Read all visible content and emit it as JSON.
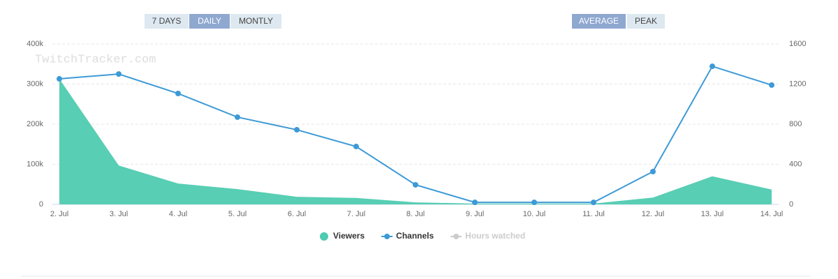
{
  "buttons": {
    "range": [
      {
        "label": "7 DAYS",
        "active": false
      },
      {
        "label": "DAILY",
        "active": true
      },
      {
        "label": "MONTLY",
        "active": false
      }
    ],
    "mode": [
      {
        "label": "AVERAGE",
        "active": true
      },
      {
        "label": "PEAK",
        "active": false
      }
    ]
  },
  "watermark": "TwitchTracker.com",
  "chart_data": {
    "type": "line",
    "categories": [
      "2. Jul",
      "3. Jul",
      "4. Jul",
      "5. Jul",
      "6. Jul",
      "7. Jul",
      "8. Jul",
      "9. Jul",
      "10. Jul",
      "11. Jul",
      "12. Jul",
      "13. Jul",
      "14. Jul"
    ],
    "series": [
      {
        "name": "Viewers",
        "type": "area",
        "color": "#4fcbb0",
        "visible": true,
        "values": [
          313000,
          97000,
          52000,
          38000,
          19000,
          16000,
          5000,
          2000,
          2000,
          2000,
          17000,
          70000,
          37000
        ]
      },
      {
        "name": "Channels",
        "type": "line",
        "axis": "y2",
        "color": "#3d9ad6",
        "visible": true,
        "values": [
          1252,
          1300,
          1106,
          870,
          744,
          577,
          195,
          20,
          20,
          20,
          327,
          1377,
          1190
        ]
      },
      {
        "name": "Hours watched",
        "type": "line",
        "color": "#cccccc",
        "visible": false,
        "values": [
          null,
          null,
          null,
          null,
          null,
          null,
          null,
          null,
          null,
          null,
          null,
          null,
          null
        ]
      }
    ],
    "ylim": [
      0,
      400000
    ],
    "yticks": [
      0,
      {
        "value": 100000,
        "label": "100k"
      },
      {
        "value": 200000,
        "label": "200k"
      },
      {
        "value": 300000,
        "label": "300k"
      },
      {
        "value": 400000,
        "label": "400k"
      }
    ],
    "y2lim": [
      0,
      1600
    ],
    "y2ticks": [
      0,
      400,
      800,
      1200,
      1600
    ],
    "grid": true
  }
}
